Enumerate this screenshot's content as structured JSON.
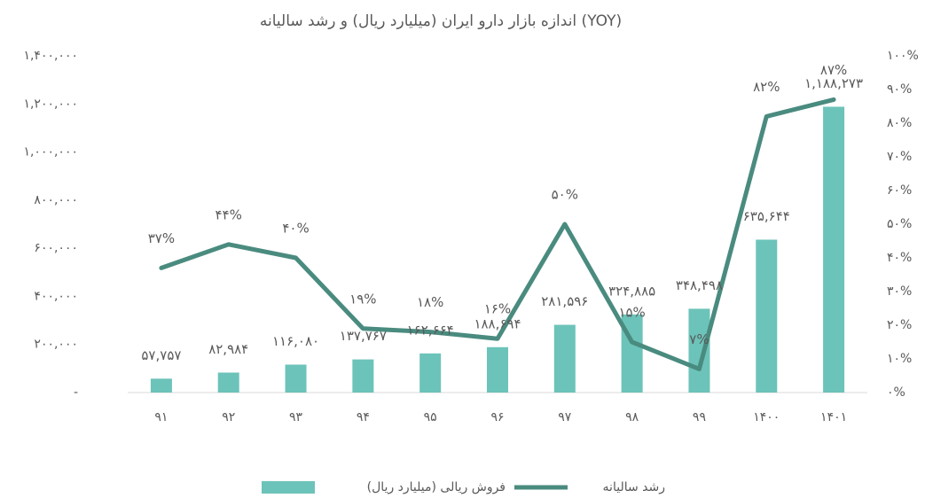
{
  "chart_data": {
    "type": "bar",
    "title": "اندازه بازار دارو ایران (میلیارد ریال) و رشد سالیانه (YOY)",
    "categories": [
      "۹۱",
      "۹۲",
      "۹۳",
      "۹۴",
      "۹۵",
      "۹۶",
      "۹۷",
      "۹۸",
      "۹۹",
      "۱۴۰۰",
      "۱۴۰۱"
    ],
    "series": [
      {
        "name": "فروش ریالی (میلیارد ریال)",
        "type": "bar",
        "color": "#6cc3b9",
        "values": [
          57757,
          82984,
          116080,
          137767,
          162664,
          188694,
          281596,
          324885,
          348498,
          635644,
          1188273
        ],
        "value_labels": [
          "۵۷,۷۵۷",
          "۸۲,۹۸۴",
          "۱۱۶,۰۸۰",
          "۱۳۷,۷۶۷",
          "۱۶۲,۶۶۴",
          "۱۸۸,۶۹۴",
          "۲۸۱,۵۹۶",
          "۳۲۴,۸۸۵",
          "۳۴۸,۴۹۸",
          "۶۳۵,۶۴۴",
          "۱,۱۸۸,۲۷۳"
        ]
      },
      {
        "name": "رشد سالیانه",
        "type": "line",
        "axis": "y2",
        "color": "#4a8b7f",
        "values": [
          37,
          44,
          40,
          19,
          18,
          16,
          50,
          15,
          7,
          82,
          87
        ],
        "value_labels": [
          "۳۷%",
          "۴۴%",
          "۴۰%",
          "۱۹%",
          "۱۸%",
          "۱۶%",
          "۵۰%",
          "۱۵%",
          "۷%",
          "۸۲%",
          "۸۷%"
        ]
      }
    ],
    "ylim": [
      0,
      1400000
    ],
    "yticks": [
      {
        "value": 0,
        "label": "-"
      },
      {
        "value": 200000,
        "label": "۲۰۰,۰۰۰"
      },
      {
        "value": 400000,
        "label": "۴۰۰,۰۰۰"
      },
      {
        "value": 600000,
        "label": "۶۰۰,۰۰۰"
      },
      {
        "value": 800000,
        "label": "۸۰۰,۰۰۰"
      },
      {
        "value": 1000000,
        "label": "۱,۰۰۰,۰۰۰"
      },
      {
        "value": 1200000,
        "label": "۱,۲۰۰,۰۰۰"
      },
      {
        "value": 1400000,
        "label": "۱,۴۰۰,۰۰۰"
      }
    ],
    "y2lim": [
      0,
      100
    ],
    "y2ticks": [
      {
        "value": 0,
        "label": "۰%"
      },
      {
        "value": 10,
        "label": "۱۰%"
      },
      {
        "value": 20,
        "label": "۲۰%"
      },
      {
        "value": 30,
        "label": "۳۰%"
      },
      {
        "value": 40,
        "label": "۴۰%"
      },
      {
        "value": 50,
        "label": "۵۰%"
      },
      {
        "value": 60,
        "label": "۶۰%"
      },
      {
        "value": 70,
        "label": "۷۰%"
      },
      {
        "value": 80,
        "label": "۸۰%"
      },
      {
        "value": 90,
        "label": "۹۰%"
      },
      {
        "value": 100,
        "label": "۱۰۰%"
      }
    ],
    "legend": "bottom"
  }
}
